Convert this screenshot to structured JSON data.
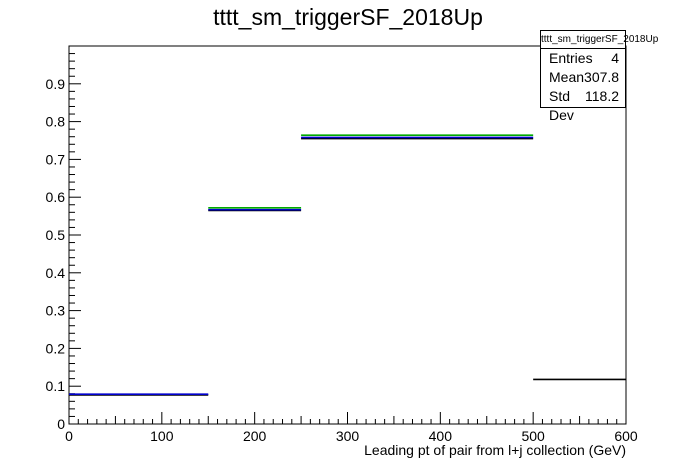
{
  "chart_data": {
    "type": "step",
    "title": "tttt_sm_triggerSF_2018Up",
    "xlabel": "Leading pt of pair from l+j collection (GeV)",
    "ylabel": "",
    "xlim": [
      0,
      600
    ],
    "ylim": [
      0,
      1
    ],
    "xticks": [
      "0",
      "100",
      "200",
      "300",
      "400",
      "500",
      "600"
    ],
    "yticks": [
      "0",
      "0.1",
      "0.2",
      "0.3",
      "0.4",
      "0.5",
      "0.6",
      "0.7",
      "0.8",
      "0.9"
    ],
    "bins": [
      {
        "x0": 0,
        "x1": 150
      },
      {
        "x0": 150,
        "x1": 250
      },
      {
        "x0": 250,
        "x1": 500
      },
      {
        "x0": 500,
        "x1": 600
      }
    ],
    "series": [
      {
        "color": "#000000",
        "values": [
          0.077,
          0.565,
          0.755,
          0.118
        ]
      },
      {
        "color": "#0000cc",
        "values": [
          0.079,
          0.567,
          0.758,
          null
        ]
      },
      {
        "color": "#00aa00",
        "values": [
          null,
          0.572,
          0.764,
          null
        ]
      }
    ],
    "stats": {
      "name": "tttt_sm_triggerSF_2018Up",
      "rows": [
        {
          "label": "Entries",
          "value": "4"
        },
        {
          "label": "Mean",
          "value": "307.8"
        },
        {
          "label": "Std Dev",
          "value": "118.2"
        }
      ]
    },
    "grid": false
  }
}
